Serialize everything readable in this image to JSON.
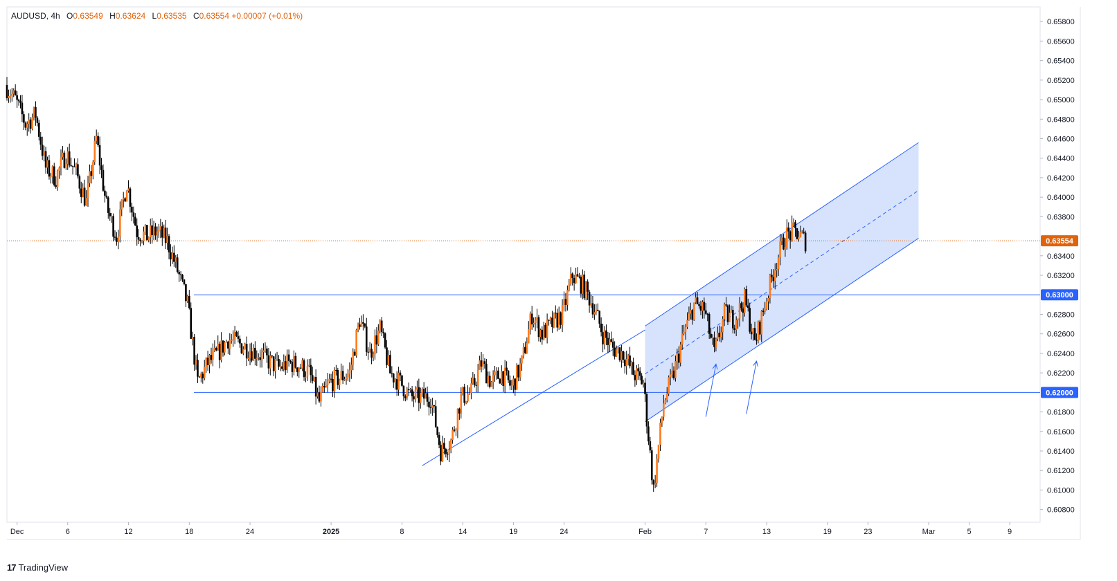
{
  "header": {
    "symbol": "AUDUSD",
    "interval": "4h",
    "open_label": "O",
    "open": "0.63549",
    "high_label": "H",
    "high": "0.63624",
    "low_label": "L",
    "low": "0.63535",
    "close_label": "C",
    "close": "0.63554",
    "change": "+0.00007 (+0.01%)"
  },
  "footer": {
    "brand": "TradingView",
    "logo_glyph": "17"
  },
  "colors": {
    "up": "#ff7a1a",
    "down": "#000000",
    "price_line": "#e0630c",
    "level_line": "#2962ff",
    "channel_fill": "#c9d9fb",
    "axis_text": "#131722",
    "last_price_bg": "#e0630c",
    "level_label_bg": "#2962ff"
  },
  "chart_data": {
    "type": "candlestick",
    "symbol": "AUDUSD",
    "interval": "4h",
    "ylim": [
      0.6067,
      0.6595
    ],
    "y_ticks": [
      "0.65800",
      "0.65600",
      "0.65400",
      "0.65200",
      "0.65000",
      "0.64800",
      "0.64600",
      "0.64400",
      "0.64200",
      "0.64000",
      "0.63800",
      "0.63400",
      "0.63200",
      "0.62800",
      "0.62600",
      "0.62400",
      "0.62200",
      "0.61800",
      "0.61600",
      "0.61400",
      "0.61200",
      "0.61000",
      "0.60800"
    ],
    "x_ticks": [
      "Dec",
      "6",
      "12",
      "18",
      "24",
      "2025",
      "8",
      "14",
      "19",
      "24",
      "Feb",
      "7",
      "13",
      "19",
      "23",
      "Mar",
      "5",
      "9"
    ],
    "bold_x_ticks": [
      "2025"
    ],
    "last_price": "0.63554",
    "horizontal_levels": [
      {
        "label": "0.63000",
        "value": 0.63
      },
      {
        "label": "0.62000",
        "value": 0.62
      }
    ],
    "channel": {
      "lower_start": {
        "date": "2025-02-01",
        "price": 0.617
      },
      "lower_end": {
        "date": "2025-02-28",
        "price": 0.6358
      },
      "width": 0.0098
    },
    "support_trendline": {
      "start": {
        "date": "2025-01-10",
        "price": 0.6125
      },
      "end": {
        "date": "2025-02-01",
        "price": 0.6264
      }
    },
    "arrows": [
      {
        "tip": {
          "date": "2025-02-08",
          "price": 0.6229
        },
        "tail": {
          "date": "2025-02-07",
          "price": 0.6175
        }
      },
      {
        "tip": {
          "date": "2025-02-12",
          "price": 0.6232
        },
        "tail": {
          "date": "2025-02-11",
          "price": 0.6178
        }
      }
    ],
    "close_path": [
      {
        "date": "2024-11-30",
        "price": 0.6515
      },
      {
        "date": "2024-12-01",
        "price": 0.65
      },
      {
        "date": "2024-12-02",
        "price": 0.6475
      },
      {
        "date": "2024-12-03",
        "price": 0.6485
      },
      {
        "date": "2024-12-04",
        "price": 0.643
      },
      {
        "date": "2024-12-05",
        "price": 0.642
      },
      {
        "date": "2024-12-06",
        "price": 0.6445
      },
      {
        "date": "2024-12-07",
        "price": 0.6425
      },
      {
        "date": "2024-12-08",
        "price": 0.6395
      },
      {
        "date": "2024-12-09",
        "price": 0.646
      },
      {
        "date": "2024-12-10",
        "price": 0.639
      },
      {
        "date": "2024-12-11",
        "price": 0.636
      },
      {
        "date": "2024-12-12",
        "price": 0.6415
      },
      {
        "date": "2024-12-13",
        "price": 0.6365
      },
      {
        "date": "2024-12-14",
        "price": 0.636
      },
      {
        "date": "2024-12-15",
        "price": 0.6365
      },
      {
        "date": "2024-12-16",
        "price": 0.6355
      },
      {
        "date": "2024-12-17",
        "price": 0.6325
      },
      {
        "date": "2024-12-18",
        "price": 0.629
      },
      {
        "date": "2024-12-19",
        "price": 0.621
      },
      {
        "date": "2024-12-20",
        "price": 0.623
      },
      {
        "date": "2024-12-21",
        "price": 0.624
      },
      {
        "date": "2024-12-22",
        "price": 0.6255
      },
      {
        "date": "2024-12-23",
        "price": 0.625
      },
      {
        "date": "2024-12-24",
        "price": 0.6245
      },
      {
        "date": "2024-12-25",
        "price": 0.624
      },
      {
        "date": "2024-12-26",
        "price": 0.6232
      },
      {
        "date": "2024-12-27",
        "price": 0.6225
      },
      {
        "date": "2024-12-28",
        "price": 0.623
      },
      {
        "date": "2024-12-29",
        "price": 0.6228
      },
      {
        "date": "2024-12-30",
        "price": 0.622
      },
      {
        "date": "2024-12-31",
        "price": 0.619
      },
      {
        "date": "2025-01-01",
        "price": 0.621
      },
      {
        "date": "2025-01-02",
        "price": 0.6215
      },
      {
        "date": "2025-01-03",
        "price": 0.622
      },
      {
        "date": "2025-01-04",
        "price": 0.6275
      },
      {
        "date": "2025-01-05",
        "price": 0.624
      },
      {
        "date": "2025-01-06",
        "price": 0.6265
      },
      {
        "date": "2025-01-07",
        "price": 0.622
      },
      {
        "date": "2025-01-08",
        "price": 0.621
      },
      {
        "date": "2025-01-09",
        "price": 0.6195
      },
      {
        "date": "2025-01-10",
        "price": 0.6195
      },
      {
        "date": "2025-01-11",
        "price": 0.6195
      },
      {
        "date": "2025-01-12",
        "price": 0.614
      },
      {
        "date": "2025-01-13",
        "price": 0.615
      },
      {
        "date": "2025-01-14",
        "price": 0.6195
      },
      {
        "date": "2025-01-15",
        "price": 0.62
      },
      {
        "date": "2025-01-16",
        "price": 0.623
      },
      {
        "date": "2025-01-17",
        "price": 0.621
      },
      {
        "date": "2025-01-18",
        "price": 0.622
      },
      {
        "date": "2025-01-19",
        "price": 0.6205
      },
      {
        "date": "2025-01-20",
        "price": 0.623
      },
      {
        "date": "2025-01-21",
        "price": 0.628
      },
      {
        "date": "2025-01-22",
        "price": 0.626
      },
      {
        "date": "2025-01-23",
        "price": 0.627
      },
      {
        "date": "2025-01-24",
        "price": 0.628
      },
      {
        "date": "2025-01-25",
        "price": 0.632
      },
      {
        "date": "2025-01-26",
        "price": 0.631
      },
      {
        "date": "2025-01-27",
        "price": 0.629
      },
      {
        "date": "2025-01-28",
        "price": 0.626
      },
      {
        "date": "2025-01-29",
        "price": 0.6245
      },
      {
        "date": "2025-01-30",
        "price": 0.624
      },
      {
        "date": "2025-01-31",
        "price": 0.622
      },
      {
        "date": "2025-02-01",
        "price": 0.621
      },
      {
        "date": "2025-02-02",
        "price": 0.61
      },
      {
        "date": "2025-02-03",
        "price": 0.619
      },
      {
        "date": "2025-02-04",
        "price": 0.622
      },
      {
        "date": "2025-02-05",
        "price": 0.626
      },
      {
        "date": "2025-02-06",
        "price": 0.629
      },
      {
        "date": "2025-02-07",
        "price": 0.6285
      },
      {
        "date": "2025-02-08",
        "price": 0.624
      },
      {
        "date": "2025-02-09",
        "price": 0.628
      },
      {
        "date": "2025-02-10",
        "price": 0.6275
      },
      {
        "date": "2025-02-11",
        "price": 0.6295
      },
      {
        "date": "2025-02-12",
        "price": 0.625
      },
      {
        "date": "2025-02-13",
        "price": 0.629
      },
      {
        "date": "2025-02-14",
        "price": 0.633
      },
      {
        "date": "2025-02-15",
        "price": 0.636
      },
      {
        "date": "2025-02-16",
        "price": 0.6365
      },
      {
        "date": "2025-02-17",
        "price": 0.6355
      }
    ]
  }
}
